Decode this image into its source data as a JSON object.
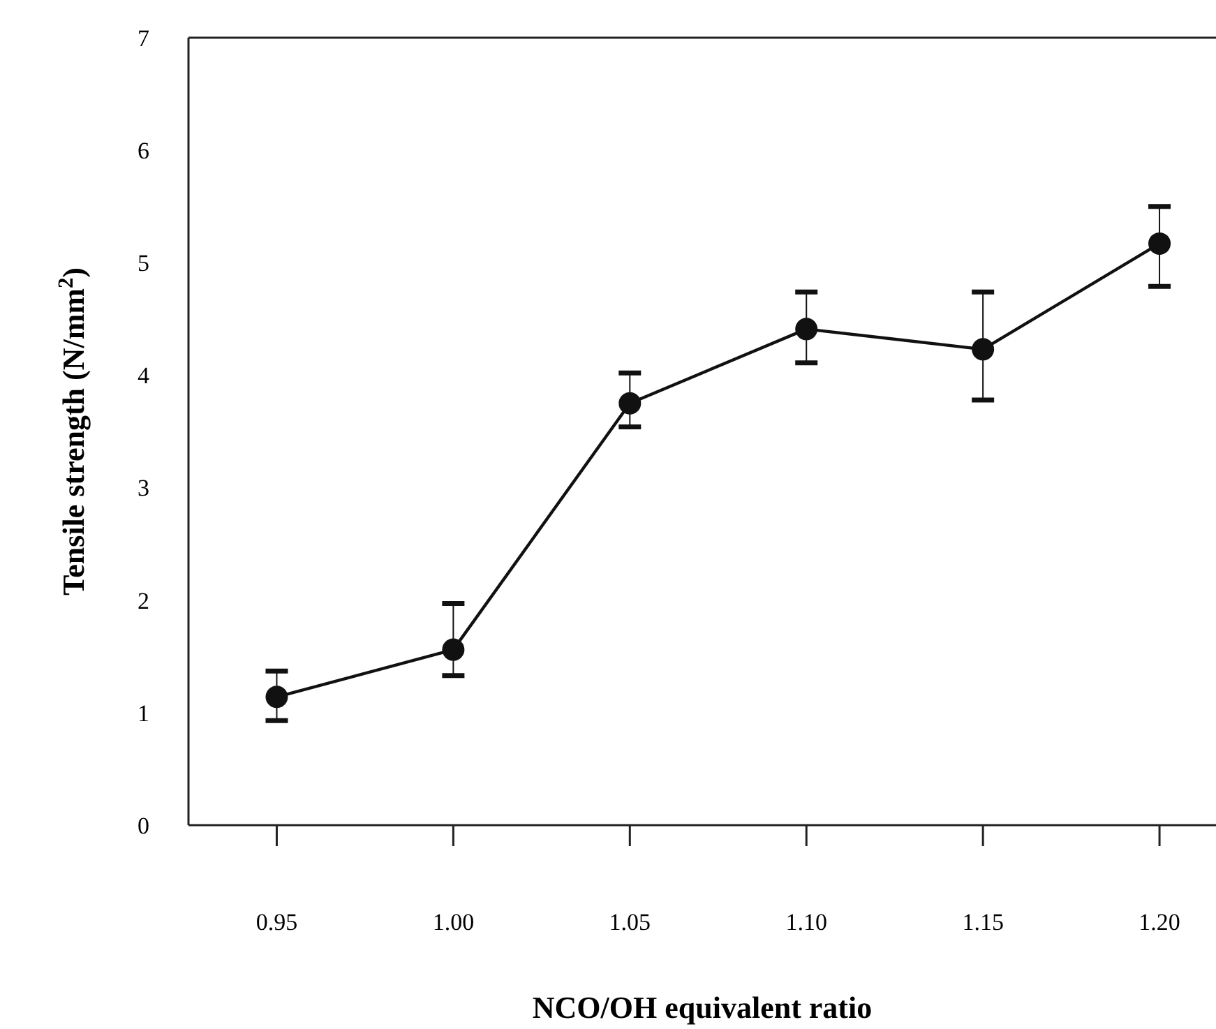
{
  "chart_data": {
    "type": "line",
    "xlabel": "NCO/OH equivalent ratio",
    "ylabel": "Tensile strength (N/mm$^{2}$)",
    "x": [
      0.95,
      1.0,
      1.05,
      1.1,
      1.15,
      1.2
    ],
    "series": [
      {
        "color": "#111111",
        "values": [
          1.14,
          1.56,
          3.75,
          4.41,
          4.23,
          5.17
        ],
        "errors": [
          [
            0.93,
            1.37
          ],
          [
            1.33,
            1.97
          ],
          [
            3.54,
            4.02
          ],
          [
            4.11,
            4.74
          ],
          [
            3.78,
            4.74
          ],
          [
            4.79,
            5.5
          ]
        ]
      }
    ],
    "xlim": [
      0.925,
      1.216
    ],
    "xticks": [
      {
        "value": 0.95,
        "label": "0.95"
      },
      {
        "value": 1.0,
        "label": "1.00"
      },
      {
        "value": 1.05,
        "label": "1.05"
      },
      {
        "value": 1.1,
        "label": "1.10"
      },
      {
        "value": 1.15,
        "label": "1.15"
      },
      {
        "value": 1.2,
        "label": "1.20"
      }
    ],
    "ylim": [
      0,
      7
    ],
    "yticks": [
      0,
      1,
      2,
      3,
      4,
      5,
      6,
      7
    ],
    "marker": "circle",
    "line_style": "solid"
  }
}
